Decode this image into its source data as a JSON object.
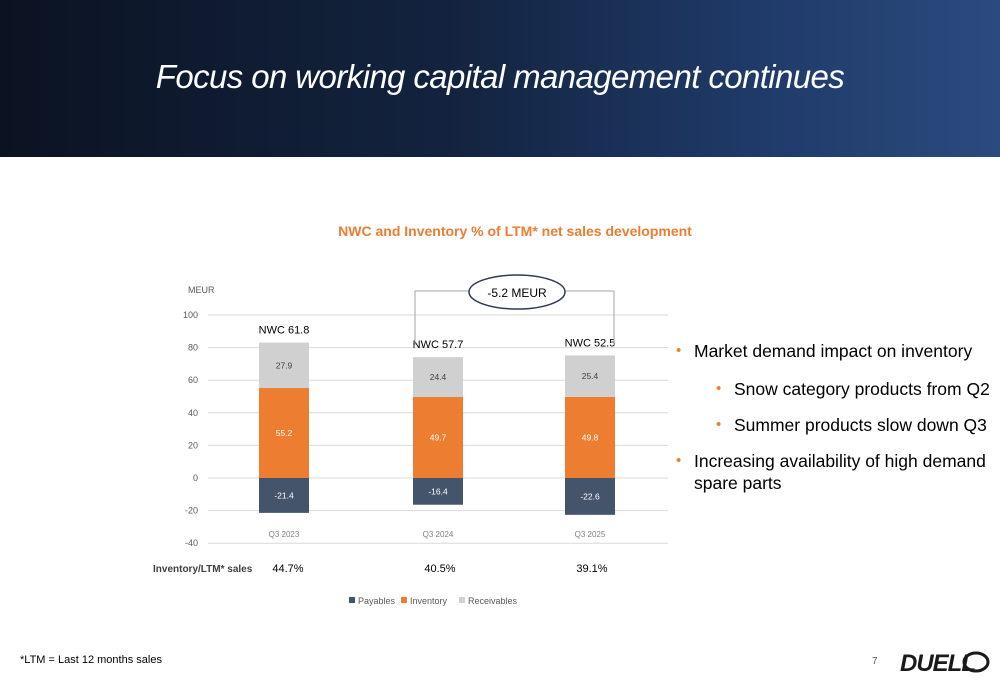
{
  "header": {
    "title": "Focus on working capital management continues"
  },
  "chart_data": {
    "type": "bar",
    "stacked": true,
    "title": "NWC and Inventory % of LTM* net sales development",
    "ylabel": "MEUR",
    "ylim": [
      -40,
      100
    ],
    "yticks": [
      100,
      80,
      60,
      40,
      20,
      0,
      -20,
      -40
    ],
    "grid": true,
    "legend_position": "bottom",
    "categories": [
      "Q3 2023",
      "Q3 2024",
      "Q3 2025"
    ],
    "series": [
      {
        "name": "Payables",
        "color": "#44546a",
        "values": [
          -21.4,
          -16.4,
          -22.6
        ]
      },
      {
        "name": "Inventory",
        "color": "#ed7d31",
        "values": [
          55.2,
          49.7,
          49.8
        ]
      },
      {
        "name": "Receivables",
        "color": "#d0d0d0",
        "values": [
          27.9,
          24.4,
          25.4
        ]
      }
    ],
    "totals_labels": [
      "NWC 61.8",
      "NWC 57.7",
      "NWC 52.5"
    ],
    "ratio_row_label": "Inventory/LTM* sales",
    "ratios": [
      "44.7%",
      "40.5%",
      "39.1%"
    ],
    "annotation": "-5.2 MEUR"
  },
  "bullets": [
    {
      "text": "Market demand impact on inventory",
      "level": 1
    },
    {
      "text": "Snow category products from Q2",
      "level": 2
    },
    {
      "text": "Summer products slow down Q3",
      "level": 2
    },
    {
      "text": "Increasing availability of high demand spare parts",
      "level": 1
    }
  ],
  "footer": {
    "footnote": "*LTM = Last 12 months sales",
    "page_number": "7",
    "logo_text": "DUELL"
  }
}
